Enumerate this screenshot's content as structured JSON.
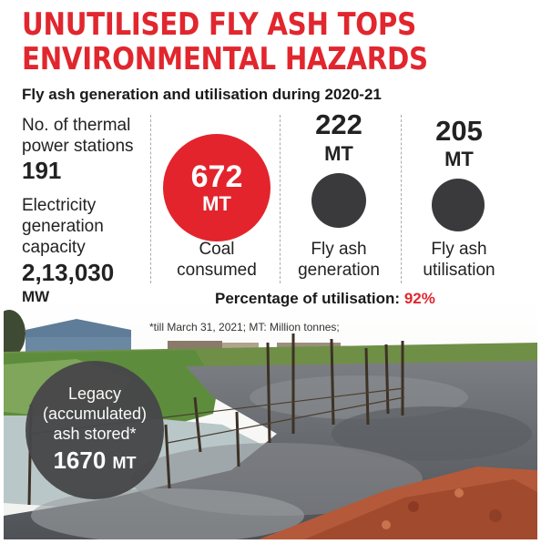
{
  "headline": {
    "line1": "UNUTILISED FLY ASH TOPS",
    "line2": "ENVIRONMENTAL HAZARDS"
  },
  "subtitle": "Fly ash generation and utilisation during 2020-21",
  "stations": {
    "label_line1": "No. of thermal",
    "label_line2": "power stations",
    "value": "191"
  },
  "capacity": {
    "label_line1": "Electricity",
    "label_line2": "generation",
    "label_line3": "capacity",
    "value": "2,13,030",
    "unit": "MW"
  },
  "coal": {
    "value": "672",
    "unit": "MT",
    "label_line1": "Coal",
    "label_line2": "consumed"
  },
  "generation": {
    "value": "222",
    "unit": "MT",
    "label_line1": "Fly ash",
    "label_line2": "generation"
  },
  "utilisation": {
    "value": "205",
    "unit": "MT",
    "label_line1": "Fly ash",
    "label_line2": "utilisation"
  },
  "percentage": {
    "label": "Percentage of utilisation:",
    "value": "92%"
  },
  "footnote": "*till March 31, 2021; MT: Million tonnes;",
  "legacy": {
    "line1": "Legacy",
    "line2": "(accumulated)",
    "line3": "ash stored*",
    "value": "1670",
    "unit": "MT"
  },
  "colors": {
    "accent_red": "#e1262e",
    "dark_circle": "#3a3a3c"
  }
}
